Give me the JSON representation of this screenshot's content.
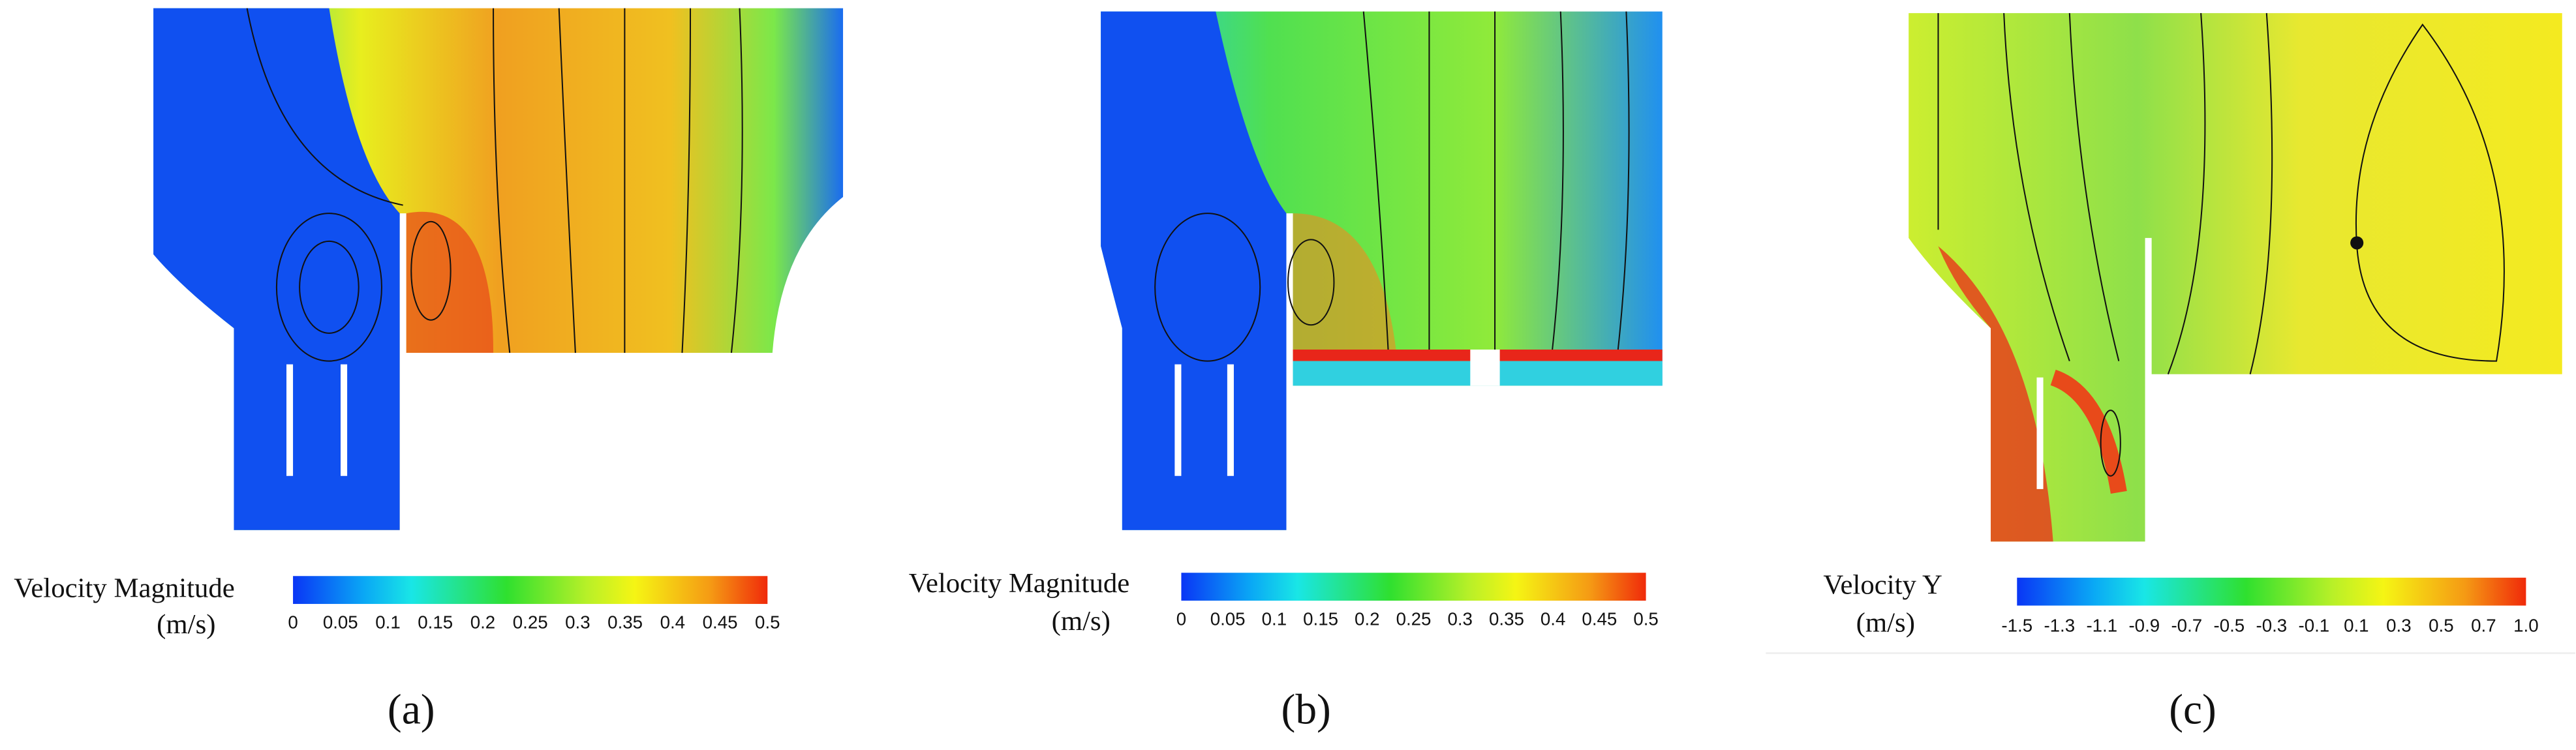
{
  "panels": [
    {
      "caption": "(a)",
      "colorbar": {
        "title": "Velocity Magnitude",
        "unit": "(m/s)",
        "ticks": [
          0,
          0.05,
          0.1,
          0.15,
          0.2,
          0.25,
          0.3,
          0.35,
          0.4,
          0.45,
          0.5
        ]
      }
    },
    {
      "caption": "(b)",
      "colorbar": {
        "title": "Velocity Magnitude",
        "unit": "(m/s)",
        "ticks": [
          0,
          0.05,
          0.1,
          0.15,
          0.2,
          0.25,
          0.3,
          0.35,
          0.4,
          0.45,
          0.5
        ]
      }
    },
    {
      "caption": "(c)",
      "colorbar": {
        "title": "Velocity Y",
        "unit": "(m/s)",
        "ticks": [
          -1.5,
          -1.3,
          -1.1,
          -0.9,
          -0.7,
          -0.5,
          -0.3,
          -0.1,
          0.1,
          0.3,
          0.5,
          0.7,
          {
            "value": 1,
            "label": "1.0"
          }
        ]
      }
    }
  ]
}
